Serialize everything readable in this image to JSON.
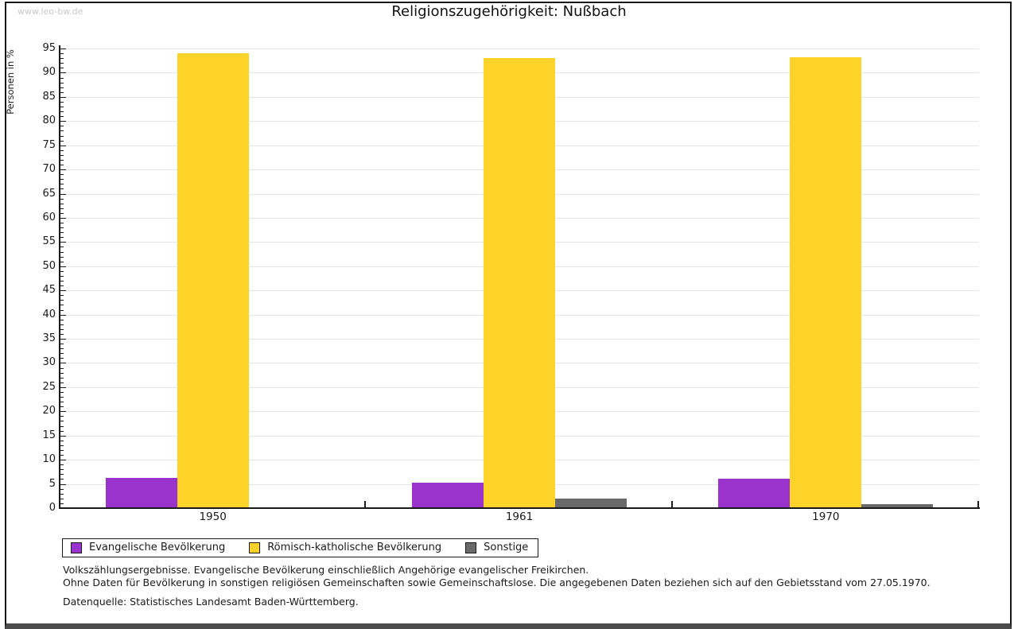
{
  "watermark": "www.leo-bw.de",
  "chart_data": {
    "type": "bar",
    "title": "Religionszugehörigkeit: Nußbach",
    "ylabel": "Personen in %",
    "categories": [
      "1950",
      "1961",
      "1970"
    ],
    "series": [
      {
        "name": "Evangelische Bevölkerung",
        "slug": "evangelische-bevoelkerung",
        "color": "#9933cc",
        "values": [
          6.3,
          5.3,
          6.1
        ]
      },
      {
        "name": "Römisch-katholische Bevölkerung",
        "slug": "roemisch-katholische-bevoelkerung",
        "color": "#fdd32a",
        "values": [
          94.0,
          93.0,
          93.2
        ]
      },
      {
        "name": "Sonstige",
        "slug": "sonstige",
        "color": "#6a6a6a",
        "values": [
          0.0,
          2.0,
          0.9
        ]
      }
    ],
    "ylim": [
      0,
      95
    ],
    "y_major_step": 5,
    "y_minor_step": 1,
    "grid": "horizontal-major",
    "legend_position": "bottom-left"
  },
  "footer": {
    "line1": "Volkszählungsergebnisse. Evangelische Bevölkerung einschließlich Angehörige evangelischer Freikirchen.",
    "line2": "Ohne Daten für Bevölkerung in sonstigen religiösen Gemeinschaften sowie Gemeinschaftslose. Die angegebenen Daten beziehen sich auf den Gebietsstand vom 27.05.1970.",
    "source": "Datenquelle: Statistisches Landesamt Baden-Württemberg."
  },
  "colors": {
    "axis": "#1a1a1a",
    "grid": "#e6e6e6",
    "watermark": "#c9c9c9",
    "frame": "#1a1a1a",
    "frame_bottom": "#4c4c4c"
  }
}
